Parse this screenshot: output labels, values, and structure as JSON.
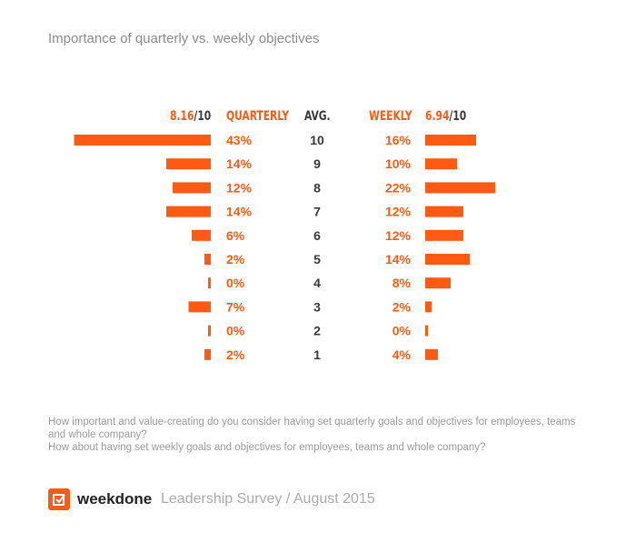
{
  "chart_data": {
    "type": "bar",
    "title": "Importance of quarterly vs. weekly objectives",
    "categories": [
      "10",
      "9",
      "8",
      "7",
      "6",
      "5",
      "4",
      "3",
      "2",
      "1"
    ],
    "category_header": "AVG.",
    "series": [
      {
        "name": "QUARTERLY",
        "average": "8.16",
        "average_suffix": "/10",
        "values": [
          43,
          14,
          12,
          14,
          6,
          2,
          0,
          7,
          0,
          2
        ]
      },
      {
        "name": "WEEKLY",
        "average": "6.94",
        "average_suffix": "/10",
        "values": [
          16,
          10,
          22,
          12,
          12,
          14,
          8,
          2,
          0,
          4
        ]
      }
    ],
    "unit": "%",
    "color": "#ff5a14"
  },
  "question": [
    "How important and value-creating do you consider having set quarterly goals and objectives for employees, teams and whole company?",
    "How about having set weekly goals and objectives for employees, teams and whole company?"
  ],
  "footer": {
    "brand": "weekdone",
    "subtitle": "Leadership Survey / August 2015"
  }
}
